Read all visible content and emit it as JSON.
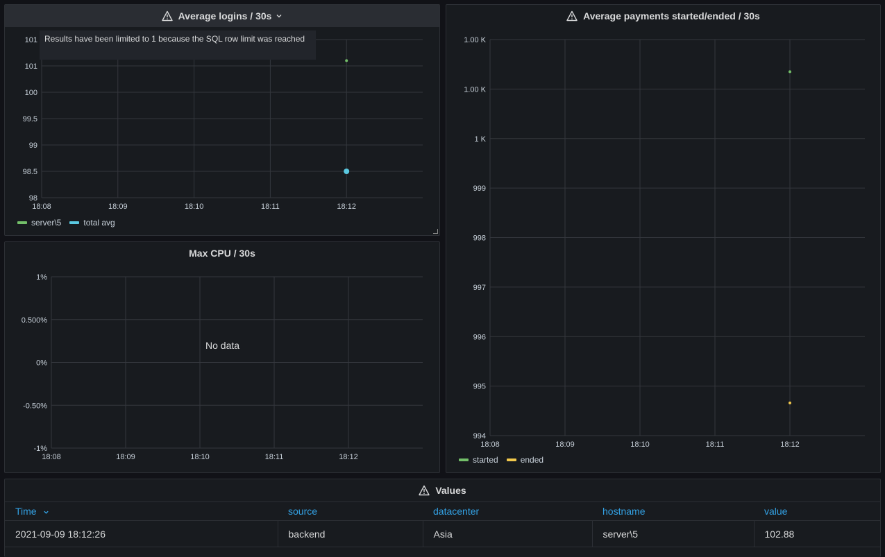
{
  "panels": {
    "logins": {
      "title": "Average logins / 30s",
      "tooltip": "Results have been limited to 1 because the SQL row limit was reached",
      "legend": [
        {
          "name": "server\\5",
          "color": "#73bf69"
        },
        {
          "name": "total avg",
          "color": "#5ac8e0"
        }
      ]
    },
    "cpu": {
      "title": "Max CPU / 30s",
      "no_data": "No data"
    },
    "payments": {
      "title": "Average payments started/ended / 30s",
      "legend": [
        {
          "name": "started",
          "color": "#73bf69"
        },
        {
          "name": "ended",
          "color": "#f2c94c"
        }
      ]
    },
    "values": {
      "title": "Values",
      "columns": [
        "Time",
        "source",
        "datacenter",
        "hostname",
        "value"
      ],
      "rows": [
        [
          "2021-09-09 18:12:26",
          "backend",
          "Asia",
          "server\\5",
          "102.88"
        ]
      ]
    }
  },
  "chart_data": [
    {
      "type": "scatter",
      "title": "Average logins / 30s",
      "x_ticks": [
        "18:08",
        "18:09",
        "18:10",
        "18:11",
        "18:12"
      ],
      "y_ticks": [
        "98",
        "98.5",
        "99",
        "99.5",
        "100",
        "101",
        "101"
      ],
      "series": [
        {
          "name": "server\\5",
          "color": "#73bf69",
          "points": [
            {
              "x": "18:12",
              "y": 101.2
            }
          ]
        },
        {
          "name": "total avg",
          "color": "#5ac8e0",
          "points": [
            {
              "x": "18:12",
              "y": 98.5
            }
          ]
        }
      ],
      "grid": true,
      "legend": "bottom-left"
    },
    {
      "type": "line",
      "title": "Max CPU / 30s",
      "x_ticks": [
        "18:08",
        "18:09",
        "18:10",
        "18:11",
        "18:12"
      ],
      "y_ticks": [
        "-1%",
        "-0.50%",
        "0%",
        "0.500%",
        "1%"
      ],
      "series": [],
      "grid": true
    },
    {
      "type": "scatter",
      "title": "Average payments started/ended / 30s",
      "x_ticks": [
        "18:08",
        "18:09",
        "18:10",
        "18:11",
        "18:12"
      ],
      "y_ticks": [
        "994",
        "995",
        "996",
        "997",
        "998",
        "999",
        "1 K",
        "1.00 K",
        "1.00 K"
      ],
      "series": [
        {
          "name": "started",
          "color": "#73bf69",
          "points": [
            {
              "x": "18:12",
              "y": 1001.35
            }
          ]
        },
        {
          "name": "ended",
          "color": "#f2c94c",
          "points": [
            {
              "x": "18:12",
              "y": 994.66
            }
          ]
        }
      ],
      "grid": true,
      "legend": "bottom-left"
    }
  ]
}
